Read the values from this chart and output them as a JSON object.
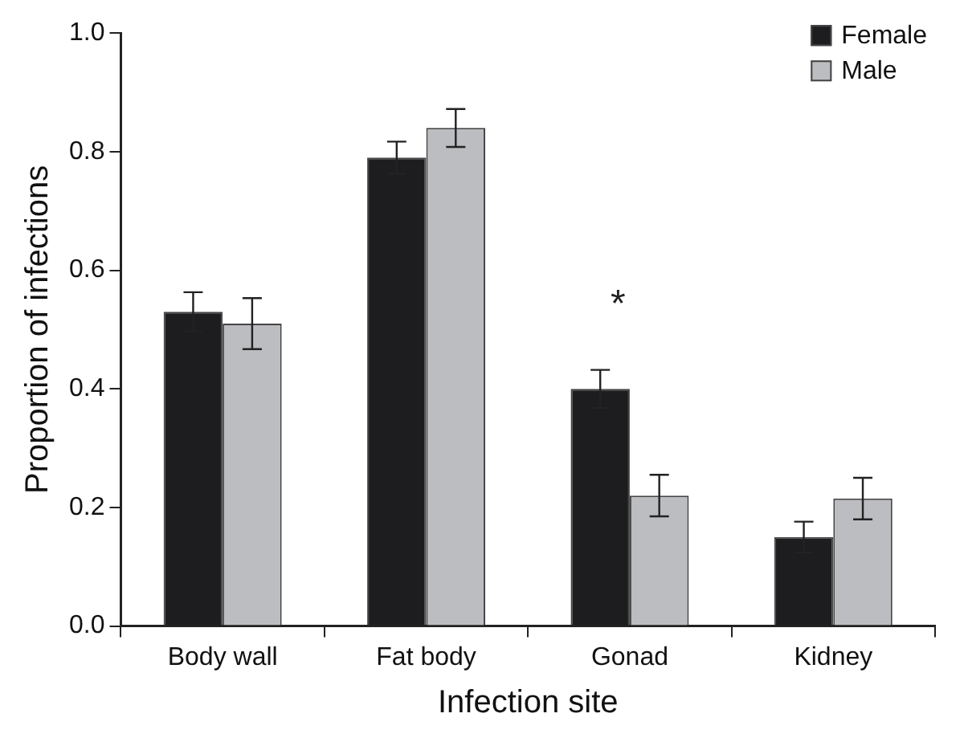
{
  "chart_data": {
    "type": "bar",
    "xlabel": "Infection site",
    "ylabel": "Proportion of infections",
    "categories": [
      "Body wall",
      "Fat body",
      "Gonad",
      "Kidney"
    ],
    "series": [
      {
        "name": "Female",
        "color": "#1d1d20",
        "values": [
          0.53,
          0.79,
          0.4,
          0.15
        ],
        "errors": [
          0.033,
          0.027,
          0.032,
          0.026
        ]
      },
      {
        "name": "Male",
        "color": "#bcbdc0",
        "values": [
          0.51,
          0.84,
          0.22,
          0.215
        ],
        "errors": [
          0.043,
          0.032,
          0.035,
          0.035
        ]
      }
    ],
    "ylim": [
      0,
      1.0
    ],
    "yticks": [
      {
        "value": 0,
        "label": "0.0"
      },
      {
        "value": 0.2,
        "label": "0.2"
      },
      {
        "value": 0.4,
        "label": "0.4"
      },
      {
        "value": 0.6,
        "label": "0.6"
      },
      {
        "value": 0.8,
        "label": "0.8"
      },
      {
        "value": 1,
        "label": "1.0"
      }
    ],
    "grid": false,
    "legend": "top right",
    "annotations": [
      "*"
    ]
  }
}
